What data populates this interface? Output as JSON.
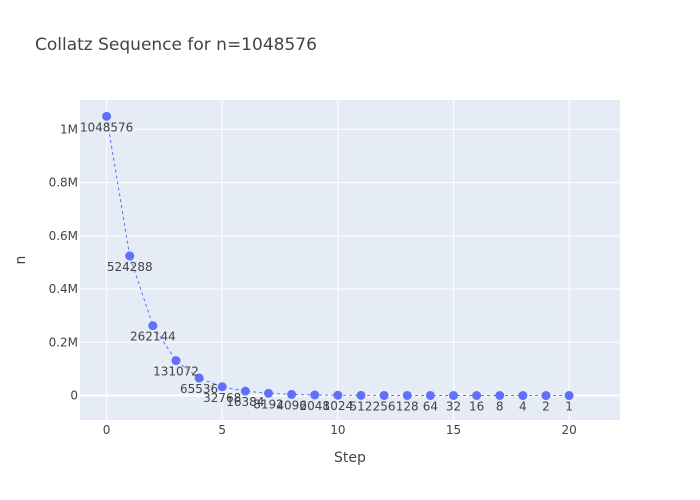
{
  "chart_data": {
    "type": "line",
    "title": "Collatz Sequence for n=1048576",
    "xlabel": "Step",
    "ylabel": "n",
    "x": [
      0,
      1,
      2,
      3,
      4,
      5,
      6,
      7,
      8,
      9,
      10,
      11,
      12,
      13,
      14,
      15,
      16,
      17,
      18,
      19,
      20
    ],
    "y": [
      1048576,
      524288,
      262144,
      131072,
      65536,
      32768,
      16384,
      8192,
      4096,
      2048,
      1024,
      512,
      256,
      128,
      64,
      32,
      16,
      8,
      4,
      2,
      1
    ],
    "point_labels": [
      "1048576",
      "524288",
      "262144",
      "131072",
      "65536",
      "32768",
      "16384",
      "8192",
      "4096",
      "2048",
      "1024",
      "512",
      "256",
      "128",
      "64",
      "32",
      "16",
      "8",
      "4",
      "2",
      "1"
    ],
    "xticks": [
      0,
      5,
      10,
      15,
      20
    ],
    "xtick_labels": [
      "0",
      "5",
      "10",
      "15",
      "20"
    ],
    "yticks": [
      0,
      200000,
      400000,
      600000,
      800000,
      1000000
    ],
    "ytick_labels": [
      "0",
      "0.2M",
      "0.4M",
      "0.6M",
      "0.8M",
      "1M"
    ],
    "xlim": [
      -1.15,
      22.2
    ],
    "ylim": [
      -92000,
      1110000
    ],
    "grid": true,
    "line_style": "dashed",
    "marker": "circle",
    "colors": {
      "series": "#636efa",
      "plot_background": "#e5ecf6",
      "grid": "#ffffff",
      "text": "#444444"
    }
  }
}
